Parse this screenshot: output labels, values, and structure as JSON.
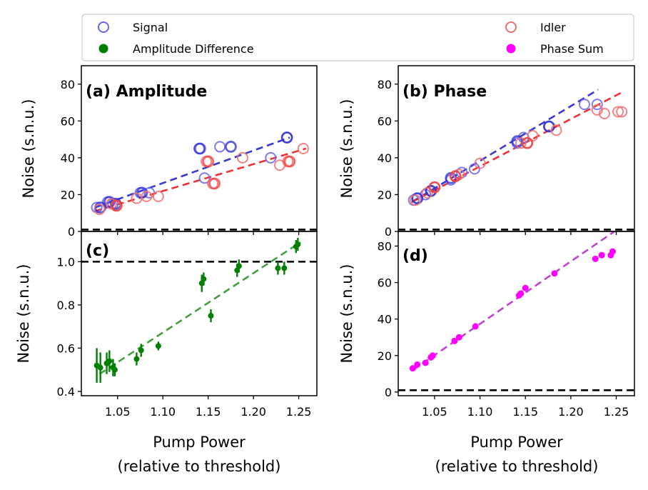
{
  "legend": {
    "items": [
      {
        "key": "signal",
        "label": "Signal",
        "marker": "hollow",
        "color": "#6666ee"
      },
      {
        "key": "amp_diff",
        "label": "Amplitude Difference",
        "marker": "filled",
        "color": "#008000"
      },
      {
        "key": "idler",
        "label": "Idler",
        "marker": "hollow",
        "color": "#f07070"
      },
      {
        "key": "phase_sum",
        "label": "Phase Sum",
        "marker": "filled",
        "color": "#ff00ff"
      }
    ]
  },
  "shared": {
    "xlabel_line1": "Pump Power",
    "xlabel_line2": "(relative to threshold)",
    "ylabel": "Noise (s.n.u.)"
  },
  "chart_data": [
    {
      "id": "a",
      "type": "scatter",
      "title": "(a) Amplitude",
      "xlim": [
        1.01,
        1.27
      ],
      "ylim": [
        0,
        90
      ],
      "yticks": [
        0,
        20,
        40,
        60,
        80
      ],
      "hline": 1,
      "series": [
        {
          "name": "Signal",
          "color": "#6666ee",
          "marker": "hollow",
          "x": [
            1.027,
            1.039,
            1.045,
            1.075,
            1.085,
            1.14,
            1.146,
            1.163,
            1.219,
            1.237
          ],
          "y": [
            13,
            16,
            15,
            21,
            21,
            45,
            29,
            46,
            40,
            51
          ]
        },
        {
          "name": "Signal (bold)",
          "color": "#2a2ad0",
          "marker": "hollow-bold",
          "x": [
            1.031,
            1.041,
            1.048,
            1.077,
            1.141,
            1.175,
            1.237
          ],
          "y": [
            13,
            16,
            15,
            21,
            45,
            46,
            51
          ]
        },
        {
          "name": "Idler",
          "color": "#f07070",
          "marker": "hollow",
          "x": [
            1.03,
            1.043,
            1.048,
            1.071,
            1.082,
            1.095,
            1.148,
            1.155,
            1.188,
            1.229,
            1.238,
            1.255
          ],
          "y": [
            12,
            15,
            14,
            18,
            19,
            19,
            38,
            26,
            40,
            36,
            38,
            45
          ]
        },
        {
          "name": "Idler (bold)",
          "color": "#f03838",
          "marker": "hollow-bold",
          "x": [
            1.049,
            1.15,
            1.157,
            1.24
          ],
          "y": [
            14,
            38,
            26,
            38
          ]
        }
      ],
      "fits": [
        {
          "name": "Signal fit",
          "color": "#2a2ad0",
          "x": [
            1.025,
            1.24
          ],
          "y": [
            13,
            51
          ]
        },
        {
          "name": "Idler fit",
          "color": "#ee2222",
          "x": [
            1.025,
            1.258
          ],
          "y": [
            11,
            45
          ]
        }
      ]
    },
    {
      "id": "b",
      "type": "scatter",
      "title": "(b) Phase",
      "xlim": [
        1.01,
        1.27
      ],
      "ylim": [
        0,
        90
      ],
      "yticks": [
        0,
        20,
        40,
        60,
        80
      ],
      "hline": 1,
      "series": [
        {
          "name": "Signal",
          "color": "#6666ee",
          "marker": "hollow",
          "x": [
            1.027,
            1.031,
            1.04,
            1.046,
            1.068,
            1.08,
            1.094,
            1.141,
            1.148,
            1.176,
            1.215,
            1.229
          ],
          "y": [
            17,
            18,
            20,
            22,
            28,
            32,
            34,
            48,
            51,
            57,
            69,
            69
          ]
        },
        {
          "name": "Signal (bold)",
          "color": "#2a2ad0",
          "marker": "hollow-bold",
          "x": [
            1.031,
            1.046,
            1.068,
            1.141,
            1.176
          ],
          "y": [
            18,
            22,
            29,
            49,
            57
          ]
        },
        {
          "name": "Idler",
          "color": "#f07070",
          "marker": "hollow",
          "x": [
            1.029,
            1.042,
            1.05,
            1.073,
            1.077,
            1.1,
            1.145,
            1.152,
            1.158,
            1.184,
            1.229,
            1.237,
            1.252,
            1.256
          ],
          "y": [
            17,
            21,
            24,
            30,
            31,
            37,
            48,
            48,
            52,
            55,
            66,
            64,
            65,
            65
          ]
        },
        {
          "name": "Idler (bold)",
          "color": "#f03838",
          "marker": "hollow-bold",
          "x": [
            1.05,
            1.073,
            1.152
          ],
          "y": [
            24,
            30,
            48
          ]
        }
      ],
      "fits": [
        {
          "name": "Signal fit",
          "color": "#2a2ad0",
          "x": [
            1.025,
            1.23
          ],
          "y": [
            16,
            77
          ]
        },
        {
          "name": "Idler fit",
          "color": "#ee2222",
          "x": [
            1.025,
            1.258
          ],
          "y": [
            16,
            76
          ]
        }
      ]
    },
    {
      "id": "c",
      "type": "errorbar",
      "title": "(c)",
      "xlim": [
        1.01,
        1.27
      ],
      "ylim": [
        0.38,
        1.14
      ],
      "yticks": [
        0.4,
        0.6,
        0.8,
        1.0
      ],
      "ytick_labels": [
        "0.4",
        "0.6",
        "0.8",
        "1.0"
      ],
      "hline": 1.0,
      "series": [
        {
          "name": "Amplitude Difference",
          "color": "#008000",
          "x": [
            1.027,
            1.031,
            1.038,
            1.041,
            1.045,
            1.047,
            1.071,
            1.076,
            1.095,
            1.143,
            1.145,
            1.153,
            1.182,
            1.184,
            1.227,
            1.234,
            1.247,
            1.249
          ],
          "y": [
            0.52,
            0.51,
            0.53,
            0.54,
            0.51,
            0.5,
            0.55,
            0.59,
            0.61,
            0.9,
            0.92,
            0.75,
            0.96,
            0.98,
            0.97,
            0.97,
            1.07,
            1.08
          ],
          "err": [
            0.08,
            0.07,
            0.05,
            0.05,
            0.04,
            0.03,
            0.03,
            0.03,
            0.02,
            0.04,
            0.03,
            0.03,
            0.03,
            0.03,
            0.03,
            0.03,
            0.03,
            0.03
          ]
        }
      ],
      "fits": [
        {
          "name": "Amplitude Difference fit",
          "color": "#339933",
          "x": [
            1.03,
            1.252
          ],
          "y": [
            0.48,
            1.09
          ]
        }
      ]
    },
    {
      "id": "d",
      "type": "scatter",
      "title": "(d)",
      "xlim": [
        1.01,
        1.27
      ],
      "ylim": [
        -2,
        88
      ],
      "yticks": [
        0,
        20,
        40,
        60,
        80
      ],
      "hline": 1,
      "series": [
        {
          "name": "Phase Sum",
          "color": "#ff00ff",
          "x": [
            1.026,
            1.031,
            1.04,
            1.046,
            1.048,
            1.072,
            1.077,
            1.095,
            1.143,
            1.145,
            1.15,
            1.182,
            1.227,
            1.234,
            1.244,
            1.246
          ],
          "y": [
            13,
            15,
            16,
            19,
            20,
            28,
            30,
            36,
            53,
            54,
            57,
            65,
            73,
            75,
            75,
            77
          ]
        }
      ],
      "fits": [
        {
          "name": "Phase Sum fit",
          "color": "#bb33cc",
          "x": [
            1.026,
            1.248
          ],
          "y": [
            12,
            88
          ]
        }
      ]
    }
  ],
  "xticks": [
    1.05,
    1.1,
    1.15,
    1.2,
    1.25
  ],
  "xtick_labels": [
    "1.05",
    "1.10",
    "1.15",
    "1.20",
    "1.25"
  ]
}
